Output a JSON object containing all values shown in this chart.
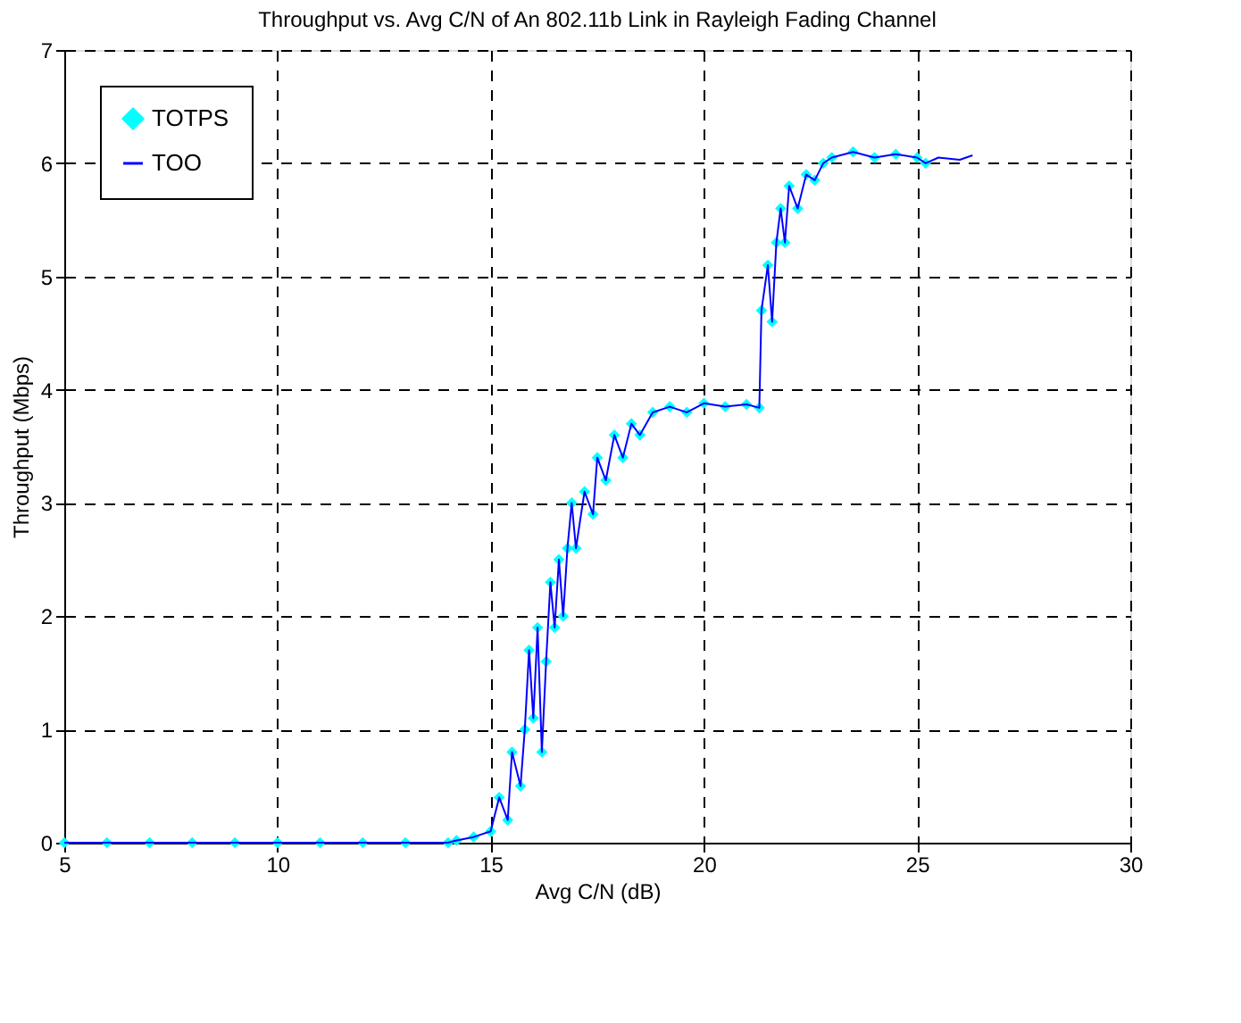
{
  "chart_data": {
    "type": "line",
    "title": "Throughput vs. Avg C/N of An 802.11b Link in Rayleigh Fading Channel",
    "xlabel": "Avg C/N (dB)",
    "ylabel": "Throughput (Mbps)",
    "xlim": [
      5,
      30
    ],
    "xticks": [
      5,
      10,
      15,
      20,
      25,
      30
    ],
    "ylim": [
      0,
      7
    ],
    "yticks": [
      0,
      1,
      2,
      3,
      4,
      5,
      6,
      7
    ],
    "grid": true,
    "legend": "top left",
    "series": [
      {
        "name": "TOTPS",
        "type": "scatter",
        "marker": "diamond",
        "color": "#00ffff",
        "x": [
          5,
          6,
          7,
          8,
          9,
          10,
          11,
          12,
          13,
          14,
          14.2,
          14.6,
          15,
          15.2,
          15.4,
          15.5,
          15.7,
          15.8,
          15.9,
          16.0,
          16.1,
          16.2,
          16.3,
          16.4,
          16.5,
          16.6,
          16.7,
          16.8,
          16.9,
          17.0,
          17.2,
          17.4,
          17.5,
          17.7,
          17.9,
          18.1,
          18.3,
          18.5,
          18.8,
          19.2,
          19.6,
          20,
          20.5,
          21,
          21.3,
          21.35,
          21.5,
          21.6,
          21.7,
          21.8,
          21.9,
          22.0,
          22.2,
          22.4,
          22.6,
          22.8,
          23,
          23.5,
          24,
          24.5,
          25,
          25.2
        ],
        "values": [
          0,
          0,
          0,
          0,
          0,
          0,
          0,
          0,
          0,
          0,
          0.02,
          0.05,
          0.1,
          0.4,
          0.2,
          0.8,
          0.5,
          1.0,
          1.7,
          1.1,
          1.9,
          0.8,
          1.6,
          2.3,
          1.9,
          2.5,
          2.0,
          2.6,
          3.0,
          2.6,
          3.1,
          2.9,
          3.4,
          3.2,
          3.6,
          3.4,
          3.7,
          3.6,
          3.8,
          3.85,
          3.8,
          3.88,
          3.85,
          3.87,
          3.84,
          4.7,
          5.1,
          4.6,
          5.3,
          5.6,
          5.3,
          5.8,
          5.6,
          5.9,
          5.85,
          6.0,
          6.05,
          6.1,
          6.05,
          6.08,
          6.05,
          6.0
        ]
      },
      {
        "name": "TOO",
        "color": "#0000ff",
        "x": [
          5,
          6,
          7,
          8,
          9,
          10,
          11,
          12,
          13,
          14,
          14.2,
          14.6,
          15,
          15.2,
          15.4,
          15.5,
          15.7,
          15.8,
          15.9,
          16.0,
          16.1,
          16.2,
          16.3,
          16.4,
          16.5,
          16.6,
          16.7,
          16.8,
          16.9,
          17.0,
          17.2,
          17.4,
          17.5,
          17.7,
          17.9,
          18.1,
          18.3,
          18.5,
          18.8,
          19.2,
          19.6,
          20,
          20.5,
          21,
          21.3,
          21.35,
          21.5,
          21.6,
          21.7,
          21.8,
          21.9,
          22.0,
          22.2,
          22.4,
          22.6,
          22.8,
          23,
          23.5,
          24,
          24.5,
          25,
          25.2,
          25.5,
          26,
          26.3
        ],
        "values": [
          0,
          0,
          0,
          0,
          0,
          0,
          0,
          0,
          0,
          0,
          0.02,
          0.05,
          0.1,
          0.4,
          0.2,
          0.8,
          0.5,
          1.0,
          1.7,
          1.1,
          1.9,
          0.8,
          1.6,
          2.3,
          1.9,
          2.5,
          2.0,
          2.6,
          3.0,
          2.6,
          3.1,
          2.9,
          3.4,
          3.2,
          3.6,
          3.4,
          3.7,
          3.6,
          3.8,
          3.85,
          3.8,
          3.88,
          3.85,
          3.87,
          3.84,
          4.7,
          5.1,
          4.6,
          5.3,
          5.6,
          5.3,
          5.8,
          5.6,
          5.9,
          5.85,
          6.0,
          6.05,
          6.1,
          6.05,
          6.08,
          6.05,
          6.0,
          6.05,
          6.03,
          6.07
        ]
      }
    ]
  }
}
